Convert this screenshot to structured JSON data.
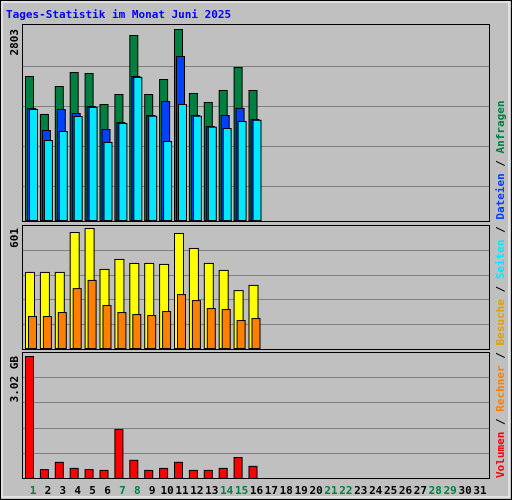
{
  "chart_data": [
    {
      "type": "bar",
      "title": "Tages-Statistik im Monat Juni 2025",
      "ylim": [
        0,
        2803
      ],
      "yticks": [
        2803
      ],
      "series": [
        {
          "name": "Anfragen",
          "color": "#008040",
          "values": [
            2113,
            1556,
            1966,
            2172,
            2157,
            1702,
            1849,
            2715,
            1849,
            2069,
            2803,
            1864,
            1732,
            1908,
            2245,
            1908,
            null,
            null,
            null,
            null,
            null,
            null,
            null,
            null,
            null,
            null,
            null,
            null,
            null,
            null,
            null
          ]
        },
        {
          "name": "Dateien",
          "color": "#0040ff",
          "values": [
            1644,
            1321,
            1629,
            1570,
            1673,
            1335,
            1438,
            2113,
            1541,
            1746,
            2407,
            1541,
            1379,
            1541,
            1644,
            1482,
            null,
            null,
            null,
            null,
            null,
            null,
            null,
            null,
            null,
            null,
            null,
            null,
            null,
            null,
            null
          ]
        },
        {
          "name": "Seiten",
          "color": "#00e8ff",
          "values": [
            1630,
            1174,
            1306,
            1526,
            1660,
            1145,
            1423,
            2100,
            1530,
            1159,
            1702,
            1530,
            1370,
            1350,
            1453,
            1470,
            null,
            null,
            null,
            null,
            null,
            null,
            null,
            null,
            null,
            null,
            null,
            null,
            null,
            null,
            null
          ]
        }
      ]
    },
    {
      "type": "bar",
      "ylim": [
        0,
        601
      ],
      "yticks": [
        601
      ],
      "series": [
        {
          "name": "Besuche",
          "color": "#ffff00",
          "text_color": "#e0a000",
          "values": [
            381,
            381,
            381,
            581,
            601,
            396,
            446,
            426,
            426,
            421,
            576,
            501,
            426,
            391,
            290,
            316,
            null,
            null,
            null,
            null,
            null,
            null,
            null,
            null,
            null,
            null,
            null,
            null,
            null,
            null,
            null
          ]
        },
        {
          "name": "Rechner",
          "color": "#ff8000",
          "values": [
            160,
            160,
            180,
            300,
            341,
            215,
            180,
            170,
            165,
            185,
            270,
            240,
            200,
            195,
            140,
            150,
            null,
            null,
            null,
            null,
            null,
            null,
            null,
            null,
            null,
            null,
            null,
            null,
            null,
            null,
            null
          ]
        }
      ]
    },
    {
      "type": "bar",
      "ylim": [
        0,
        3.02
      ],
      "yticks": [
        {
          "value": 3.02,
          "label": "3.02 GB"
        }
      ],
      "categories": [
        "1",
        "2",
        "3",
        "4",
        "5",
        "6",
        "7",
        "8",
        "9",
        "10",
        "11",
        "12",
        "13",
        "14",
        "15",
        "16",
        "17",
        "18",
        "19",
        "20",
        "21",
        "22",
        "23",
        "24",
        "25",
        "26",
        "27",
        "28",
        "29",
        "30",
        "31"
      ],
      "category_colors": [
        "#008040",
        "#000000",
        "#000000",
        "#000000",
        "#000000",
        "#000000",
        "#008040",
        "#008040",
        "#000000",
        "#000000",
        "#000000",
        "#000000",
        "#000000",
        "#008040",
        "#008040",
        "#000000",
        "#000000",
        "#000000",
        "#000000",
        "#000000",
        "#008040",
        "#008040",
        "#000000",
        "#000000",
        "#000000",
        "#000000",
        "#000000",
        "#008040",
        "#008040",
        "#000000",
        "#000000"
      ],
      "legend_separator": " / ",
      "series": [
        {
          "name": "Volumen",
          "color": "#ff0000",
          "values": [
            3.02,
            0.22,
            0.4,
            0.25,
            0.22,
            0.2,
            1.21,
            0.45,
            0.2,
            0.25,
            0.4,
            0.2,
            0.2,
            0.25,
            0.52,
            0.3,
            null,
            null,
            null,
            null,
            null,
            null,
            null,
            null,
            null,
            null,
            null,
            null,
            null,
            null,
            null
          ]
        }
      ]
    }
  ]
}
